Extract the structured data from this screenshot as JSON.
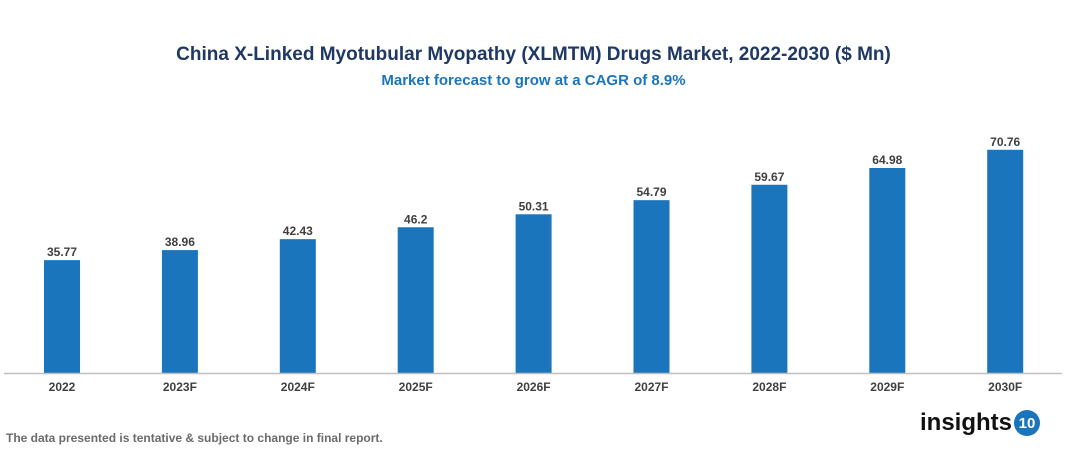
{
  "chart_data": {
    "type": "bar",
    "title": "China X-Linked Myotubular Myopathy (XLMTM) Drugs Market, 2022-2030 ($ Mn)",
    "subtitle": "Market forecast to grow at a CAGR of 8.9%",
    "categories": [
      "2022",
      "2023F",
      "2024F",
      "2025F",
      "2026F",
      "2027F",
      "2028F",
      "2029F",
      "2030F"
    ],
    "values": [
      35.77,
      38.96,
      42.43,
      46.2,
      50.31,
      54.79,
      59.67,
      64.98,
      70.76
    ],
    "xlabel": "",
    "ylabel": "",
    "ylim": [
      0,
      75
    ],
    "grid": false,
    "legend": "none",
    "bar_color": "#1a75bc"
  },
  "footnote": "The data presented is tentative & subject to change in final report.",
  "logo": {
    "text": "insights",
    "badge": "10"
  }
}
